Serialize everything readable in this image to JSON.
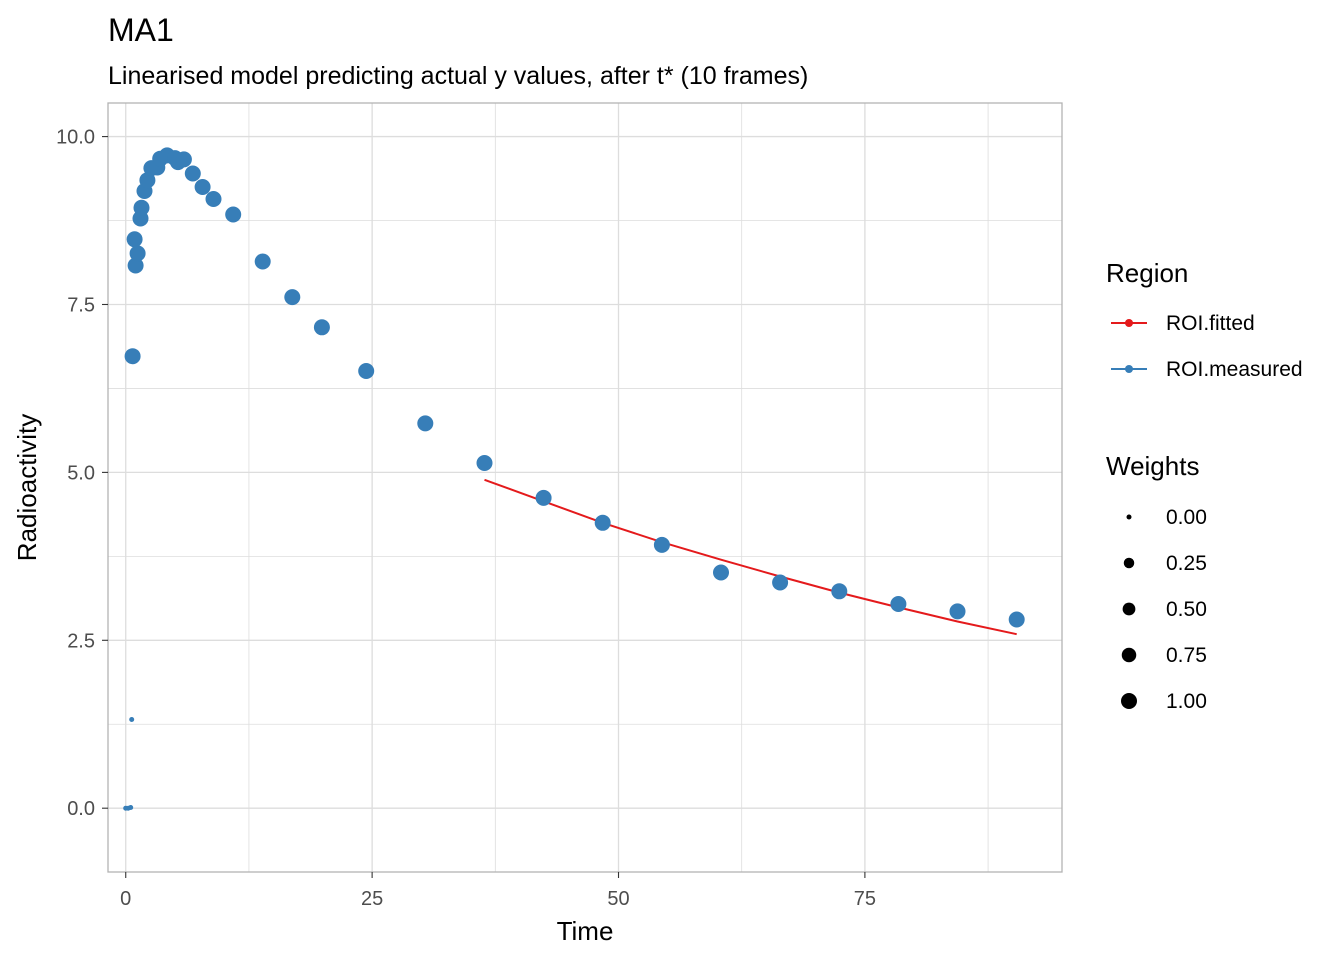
{
  "chart_data": {
    "type": "scatter",
    "title": "MA1",
    "subtitle": "Linearised model predicting actual y values, after t* (10 frames)",
    "xlabel": "Time",
    "ylabel": "Radioactivity",
    "xlim": [
      -1.8,
      95.0
    ],
    "ylim": [
      -0.95,
      10.5
    ],
    "x_ticks": [
      0,
      25,
      50,
      75
    ],
    "x_tick_labels": [
      "0",
      "25",
      "50",
      "75"
    ],
    "y_ticks": [
      0.0,
      2.5,
      5.0,
      7.5,
      10.0
    ],
    "y_tick_labels": [
      "0.0",
      "2.5",
      "5.0",
      "7.5",
      "10.0"
    ],
    "grid": true,
    "legend_position": "right",
    "colors": {
      "fitted": "#e41a1c",
      "measured": "#377eb8",
      "grid": "#dddddd",
      "panel_border": "#b3b3b3"
    },
    "legend": {
      "region_title": "Region",
      "region_items": [
        {
          "label": "ROI.fitted",
          "color": "#e41a1c"
        },
        {
          "label": "ROI.measured",
          "color": "#377eb8"
        }
      ],
      "weights_title": "Weights",
      "weights_items": [
        {
          "label": "0.00",
          "weight": 0.0
        },
        {
          "label": "0.25",
          "weight": 0.25
        },
        {
          "label": "0.50",
          "weight": 0.5
        },
        {
          "label": "0.75",
          "weight": 0.75
        },
        {
          "label": "1.00",
          "weight": 1.0
        }
      ]
    },
    "series": [
      {
        "name": "ROI.measured",
        "kind": "points",
        "points": [
          {
            "x": 0.0,
            "y": 0.0,
            "w": 0.0
          },
          {
            "x": 0.25,
            "y": 0.0,
            "w": 0.0
          },
          {
            "x": 0.5,
            "y": 0.01,
            "w": 0.0
          },
          {
            "x": 0.6,
            "y": 1.32,
            "w": 0.0
          },
          {
            "x": 0.7,
            "y": 6.73,
            "w": 1.0
          },
          {
            "x": 0.9,
            "y": 8.47,
            "w": 1.0
          },
          {
            "x": 1.0,
            "y": 8.08,
            "w": 1.0
          },
          {
            "x": 1.2,
            "y": 8.26,
            "w": 1.0
          },
          {
            "x": 1.5,
            "y": 8.78,
            "w": 1.0
          },
          {
            "x": 1.6,
            "y": 8.94,
            "w": 1.0
          },
          {
            "x": 1.9,
            "y": 9.19,
            "w": 1.0
          },
          {
            "x": 2.2,
            "y": 9.35,
            "w": 1.0
          },
          {
            "x": 2.6,
            "y": 9.53,
            "w": 1.0
          },
          {
            "x": 3.2,
            "y": 9.54,
            "w": 1.0
          },
          {
            "x": 3.5,
            "y": 9.67,
            "w": 1.0
          },
          {
            "x": 4.2,
            "y": 9.72,
            "w": 1.0
          },
          {
            "x": 5.0,
            "y": 9.68,
            "w": 1.0
          },
          {
            "x": 5.3,
            "y": 9.62,
            "w": 1.0
          },
          {
            "x": 5.9,
            "y": 9.66,
            "w": 1.0
          },
          {
            "x": 6.8,
            "y": 9.45,
            "w": 1.0
          },
          {
            "x": 7.8,
            "y": 9.25,
            "w": 1.0
          },
          {
            "x": 8.9,
            "y": 9.07,
            "w": 1.0
          },
          {
            "x": 10.9,
            "y": 8.84,
            "w": 1.0
          },
          {
            "x": 13.9,
            "y": 8.14,
            "w": 1.0
          },
          {
            "x": 16.9,
            "y": 7.61,
            "w": 1.0
          },
          {
            "x": 19.9,
            "y": 7.16,
            "w": 1.0
          },
          {
            "x": 24.4,
            "y": 6.51,
            "w": 1.0
          },
          {
            "x": 30.4,
            "y": 5.73,
            "w": 1.0
          },
          {
            "x": 36.4,
            "y": 5.14,
            "w": 1.0
          },
          {
            "x": 42.4,
            "y": 4.62,
            "w": 1.0
          },
          {
            "x": 48.4,
            "y": 4.25,
            "w": 1.0
          },
          {
            "x": 54.4,
            "y": 3.92,
            "w": 1.0
          },
          {
            "x": 60.4,
            "y": 3.51,
            "w": 1.0
          },
          {
            "x": 66.4,
            "y": 3.36,
            "w": 1.0
          },
          {
            "x": 72.4,
            "y": 3.23,
            "w": 1.0
          },
          {
            "x": 78.4,
            "y": 3.04,
            "w": 1.0
          },
          {
            "x": 84.4,
            "y": 2.93,
            "w": 1.0
          },
          {
            "x": 90.4,
            "y": 2.81,
            "w": 1.0
          }
        ]
      },
      {
        "name": "ROI.fitted",
        "kind": "line",
        "points": [
          {
            "x": 36.4,
            "y": 4.89
          },
          {
            "x": 42.4,
            "y": 4.57
          },
          {
            "x": 48.4,
            "y": 4.25
          },
          {
            "x": 54.4,
            "y": 3.96
          },
          {
            "x": 60.4,
            "y": 3.7
          },
          {
            "x": 66.4,
            "y": 3.45
          },
          {
            "x": 72.4,
            "y": 3.21
          },
          {
            "x": 78.4,
            "y": 2.99
          },
          {
            "x": 84.4,
            "y": 2.78
          },
          {
            "x": 90.4,
            "y": 2.59
          }
        ]
      }
    ]
  }
}
